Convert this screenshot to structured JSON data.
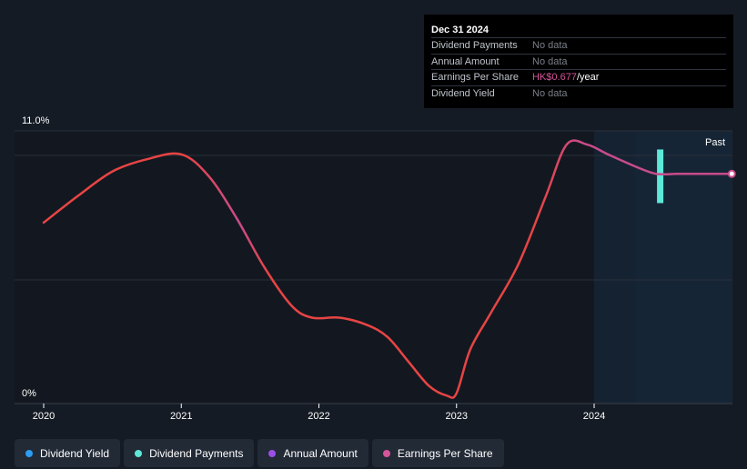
{
  "chart_data": {
    "type": "line",
    "y_top_label": "11.0%",
    "y_bottom_label": "0%",
    "ylim": [
      0,
      11
    ],
    "x_ticks": [
      "2020",
      "2021",
      "2022",
      "2023",
      "2024"
    ],
    "past_label": "Past",
    "series": [
      {
        "name": "Dividend Yield",
        "color": "#e84444",
        "color_forecast": "#c84b8c",
        "x": [
          2020.0,
          2020.25,
          2020.5,
          2020.75,
          2021.0,
          2021.2,
          2021.4,
          2021.6,
          2021.8,
          2021.95,
          2022.15,
          2022.35,
          2022.5,
          2022.65,
          2022.8,
          2022.93,
          2023.0,
          2023.1,
          2023.25,
          2023.45,
          2023.65,
          2023.8,
          2023.95,
          2024.1,
          2024.3,
          2024.45,
          2024.6,
          2024.75,
          2024.9,
          2025.0
        ],
        "values": [
          7.2,
          8.3,
          9.3,
          9.8,
          10.0,
          9.1,
          7.4,
          5.4,
          3.8,
          3.3,
          3.3,
          3.0,
          2.5,
          1.5,
          0.5,
          0.1,
          0.2,
          2.0,
          3.5,
          5.5,
          8.3,
          10.4,
          10.4,
          10.0,
          9.5,
          9.2,
          9.2,
          9.2,
          9.2,
          9.2
        ]
      }
    ],
    "dividend_payment_bar": {
      "x": 2024.48,
      "low": 8.0,
      "high": 10.2,
      "color": "#5de8d8"
    },
    "forecast_start_x": 2024.0
  },
  "tooltip": {
    "date": "Dec 31 2024",
    "rows": [
      {
        "label": "Dividend Payments",
        "value": "No data"
      },
      {
        "label": "Annual Amount",
        "value": "No data"
      },
      {
        "label": "Earnings Per Share",
        "value_highlight": "HK$0.677",
        "value_suffix": "/year"
      },
      {
        "label": "Dividend Yield",
        "value": "No data"
      }
    ]
  },
  "legend": [
    {
      "label": "Dividend Yield",
      "color": "#2e9cf0"
    },
    {
      "label": "Dividend Payments",
      "color": "#5de8d8"
    },
    {
      "label": "Annual Amount",
      "color": "#9b4fe6"
    },
    {
      "label": "Earnings Per Share",
      "color": "#d6549a"
    }
  ]
}
